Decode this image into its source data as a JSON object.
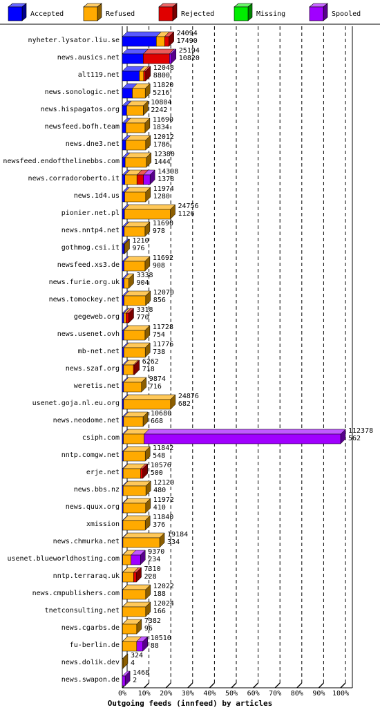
{
  "chart_data": {
    "type": "bar",
    "orientation": "horizontal",
    "stacked": true,
    "xlabel": "Outgoing feeds (innfeed) by articles",
    "legend": "top",
    "grid": true,
    "xlim": [
      0,
      100
    ],
    "xticks": [
      {
        "value": 0,
        "label": "0%"
      },
      {
        "value": 10,
        "label": "10%"
      },
      {
        "value": 20,
        "label": "20%"
      },
      {
        "value": 30,
        "label": "30%"
      },
      {
        "value": 40,
        "label": "40%"
      },
      {
        "value": 50,
        "label": "50%"
      },
      {
        "value": 60,
        "label": "60%"
      },
      {
        "value": 70,
        "label": "70%"
      },
      {
        "value": 80,
        "label": "80%"
      },
      {
        "value": 90,
        "label": "90%"
      },
      {
        "value": 100,
        "label": "100%"
      }
    ],
    "categories": [
      "nyheter.lysator.liu.se",
      "news.ausics.net",
      "alt119.net",
      "news.sonologic.net",
      "news.hispagatos.org",
      "newsfeed.bofh.team",
      "news.dne3.net",
      "newsfeed.endofthelinebbs.com",
      "news.corradoroberto.it",
      "news.1d4.us",
      "pionier.net.pl",
      "news.nntp4.net",
      "gothmog.csi.it",
      "newsfeed.xs3.de",
      "news.furie.org.uk",
      "news.tomockey.net",
      "gegeweb.org",
      "news.usenet.ovh",
      "mb-net.net",
      "news.szaf.org",
      "weretis.net",
      "usenet.goja.nl.eu.org",
      "news.neodome.net",
      "csiph.com",
      "nntp.comgw.net",
      "erje.net",
      "news.bbs.nz",
      "news.quux.org",
      "xmission",
      "news.chmurka.net",
      "usenet.blueworldhosting.com",
      "nntp.terraraq.uk",
      "news.cmpublishers.com",
      "tnetconsulting.net",
      "news.cgarbs.de",
      "fu-berlin.de",
      "news.dolik.dev",
      "news.swapon.de"
    ],
    "offered": [
      24094,
      25194,
      12048,
      11820,
      10804,
      11690,
      12012,
      12380,
      14308,
      11974,
      24756,
      11690,
      1210,
      11692,
      3338,
      12070,
      3318,
      11728,
      11776,
      6262,
      9874,
      24876,
      10680,
      112378,
      11842,
      10576,
      12120,
      11972,
      11840,
      19184,
      9370,
      7310,
      12022,
      12024,
      7382,
      10510,
      324,
      1468
    ],
    "accepted": [
      17490,
      10820,
      8800,
      5216,
      2242,
      1834,
      1786,
      1444,
      1378,
      1280,
      1126,
      978,
      976,
      908,
      904,
      856,
      770,
      754,
      738,
      718,
      716,
      682,
      668,
      562,
      548,
      500,
      480,
      410,
      376,
      334,
      234,
      228,
      188,
      166,
      96,
      88,
      4,
      2
    ],
    "series": [
      {
        "name": "Accepted",
        "color": "#0000ff",
        "values": [
          15.6,
          9.6,
          7.8,
          4.6,
          2.0,
          1.6,
          1.6,
          1.3,
          1.2,
          1.1,
          1.0,
          0.9,
          0.9,
          0.8,
          0.8,
          0.8,
          0.7,
          0.7,
          0.7,
          0.6,
          0.6,
          0.6,
          0.6,
          0.5,
          0.5,
          0.4,
          0.4,
          0.4,
          0.3,
          0.3,
          0.2,
          0.2,
          0.2,
          0.1,
          0.1,
          0.1,
          0,
          0
        ]
      },
      {
        "name": "Refused",
        "color": "#ffaa00",
        "values": [
          3.8,
          0,
          2.0,
          5.9,
          7.6,
          8.8,
          9.1,
          9.7,
          5.5,
          9.6,
          21.0,
          9.5,
          0.2,
          9.6,
          2.2,
          9.9,
          1.0,
          9.7,
          9.8,
          4.5,
          8.2,
          21.5,
          8.9,
          9.5,
          10.0,
          8.0,
          10.4,
          10.3,
          10.2,
          16.8,
          3.8,
          5.0,
          10.5,
          10.6,
          6.5,
          6.5,
          0.3,
          0
        ]
      },
      {
        "name": "Rejected",
        "color": "#e00000",
        "values": [
          2.0,
          12.0,
          0.9,
          0,
          0,
          0,
          0,
          0,
          3.0,
          0,
          0,
          0,
          0,
          0,
          0,
          0,
          1.3,
          0,
          0,
          0.5,
          0,
          0,
          0,
          0,
          0,
          1.0,
          0,
          0,
          0,
          0,
          0,
          1.3,
          0,
          0,
          0,
          0,
          0,
          0
        ]
      },
      {
        "name": "Missing",
        "color": "#00ee00",
        "values": [
          0,
          0,
          0,
          0,
          0,
          0,
          0,
          0,
          0,
          0,
          0,
          0,
          0,
          0,
          0,
          0,
          0,
          0,
          0,
          0,
          0,
          0,
          0,
          0,
          0,
          0,
          0,
          0,
          0,
          0,
          0,
          0,
          0,
          0,
          0,
          0,
          0,
          0
        ]
      },
      {
        "name": "Spooled",
        "color": "#a000ff",
        "values": [
          0,
          0.8,
          0,
          0,
          0,
          0,
          0,
          0,
          3.0,
          0,
          0,
          0,
          0,
          0,
          0,
          0,
          0,
          0,
          0,
          0,
          0,
          0,
          0,
          90.0,
          0,
          0,
          0,
          0,
          0,
          0,
          4.3,
          0,
          0,
          0,
          0,
          2.8,
          0,
          1.3
        ]
      }
    ]
  }
}
